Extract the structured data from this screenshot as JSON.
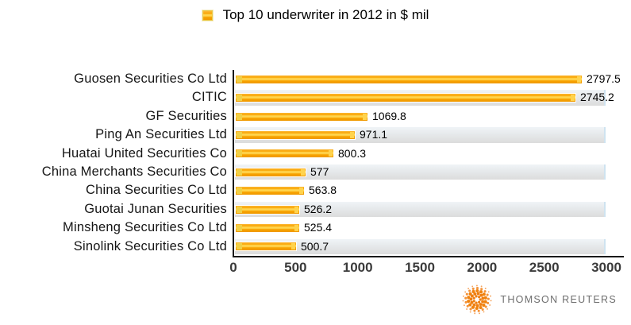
{
  "chart_data": {
    "type": "bar",
    "orientation": "horizontal",
    "title": "Top 10 underwriter in 2012 in $ mil",
    "categories": [
      "Guosen Securities Co Ltd",
      "CITIC",
      "GF Securities",
      "Ping An Securities Ltd",
      "Huatai United Securities Co",
      "China Merchants Securities Co",
      "China Securities Co Ltd",
      "Guotai Junan Securities",
      "Minsheng Securities Co Ltd",
      "Sinolink Securities Co Ltd"
    ],
    "values": [
      2797.5,
      2745.2,
      1069.8,
      971.1,
      800.3,
      577,
      563.8,
      526.2,
      525.4,
      500.7
    ],
    "value_labels": [
      "2797.5",
      "2745.2",
      "1069.8",
      "971.1",
      "800.3",
      "577",
      "563.8",
      "526.2",
      "525.4",
      "500.7"
    ],
    "xlim": [
      0,
      3000
    ],
    "x_ticks": [
      0,
      500,
      1000,
      1500,
      2000,
      2500,
      3000
    ],
    "x_tick_labels": [
      "0",
      "500",
      "1000",
      "1500",
      "2000",
      "2500",
      "3000"
    ],
    "xlabel": "",
    "ylabel": "",
    "grid": false,
    "legend_position": "top-center",
    "row_striping": "even rows shaded gray"
  },
  "legend": {
    "label": "Top 10 underwriter in 2012 in $ mil"
  },
  "branding": {
    "logo_text": "THOMSON REUTERS"
  },
  "colors": {
    "bar_orange": "#F9A505",
    "bar_gloss_yellow": "#FFD54F",
    "bar_tip_gold": "#F0CF46",
    "row_stripe_gray": "#E4E7E9",
    "axis_black": "#1A1A1A",
    "tick_text": "#3B3B3B",
    "logo_orange": "#EF7F10",
    "logo_text_gray": "#6E6E6E"
  }
}
